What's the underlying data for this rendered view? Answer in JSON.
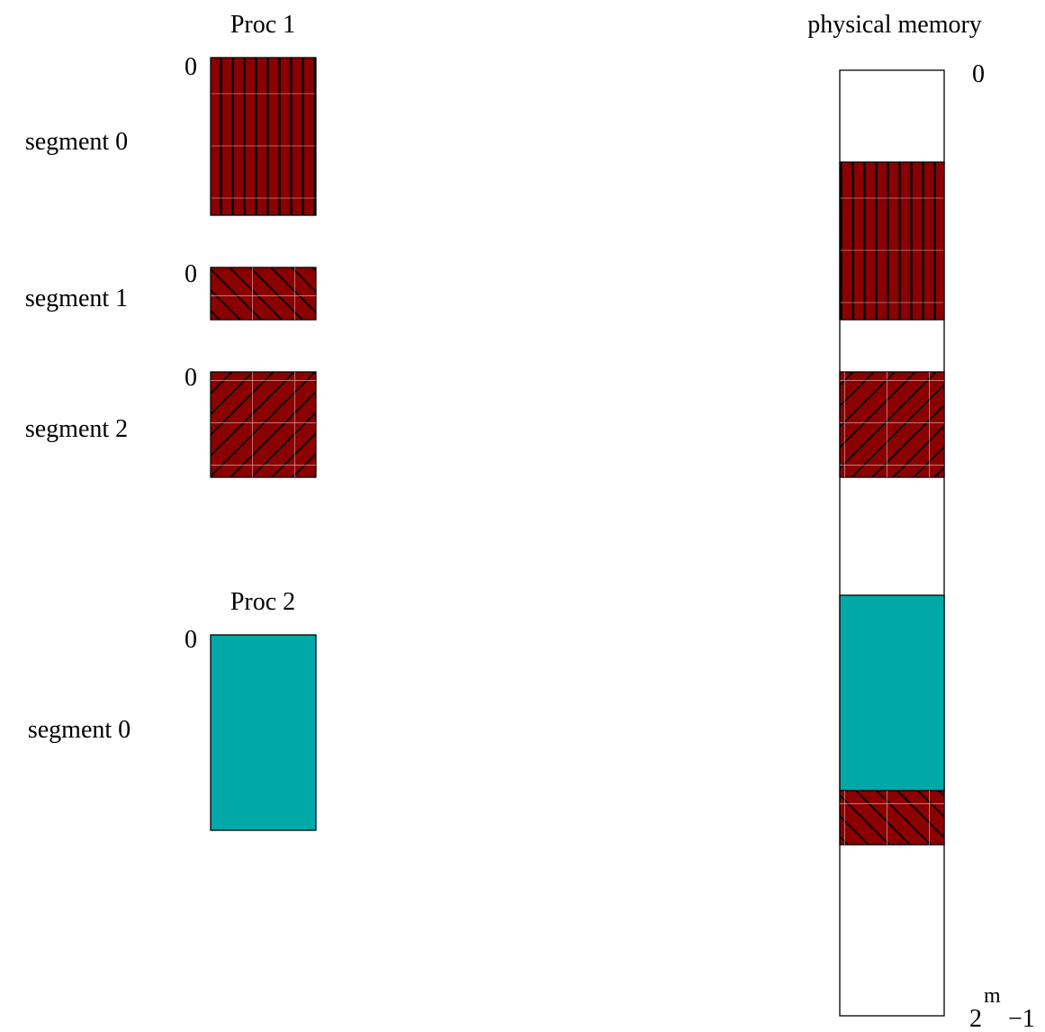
{
  "colors": {
    "segment_fill": "#8b0000",
    "proc2_fill": "#00a8a8",
    "outline": "#000000",
    "background": "#ffffff"
  },
  "proc1": {
    "title": "Proc 1",
    "segments": [
      {
        "label": "segment 0",
        "offset_label": "0",
        "pattern": "vertical-lines"
      },
      {
        "label": "segment 1",
        "offset_label": "0",
        "pattern": "back-diagonal"
      },
      {
        "label": "segment 2",
        "offset_label": "0",
        "pattern": "forward-diagonal"
      }
    ]
  },
  "proc2": {
    "title": "Proc 2",
    "segments": [
      {
        "label": "segment 0",
        "offset_label": "0",
        "pattern": "solid"
      }
    ]
  },
  "physical_memory": {
    "title": "physical memory",
    "top_label": "0",
    "bottom_label_base": "2",
    "bottom_label_exponent": "m",
    "bottom_label_suffix": "−1",
    "regions": [
      {
        "name": "free",
        "pattern": "none"
      },
      {
        "name": "proc1-segment-0",
        "pattern": "vertical-lines"
      },
      {
        "name": "free",
        "pattern": "none"
      },
      {
        "name": "proc1-segment-2",
        "pattern": "forward-diagonal"
      },
      {
        "name": "free",
        "pattern": "none"
      },
      {
        "name": "proc2-segment-0",
        "pattern": "solid"
      },
      {
        "name": "proc1-segment-1",
        "pattern": "back-diagonal"
      },
      {
        "name": "free",
        "pattern": "none"
      }
    ]
  }
}
